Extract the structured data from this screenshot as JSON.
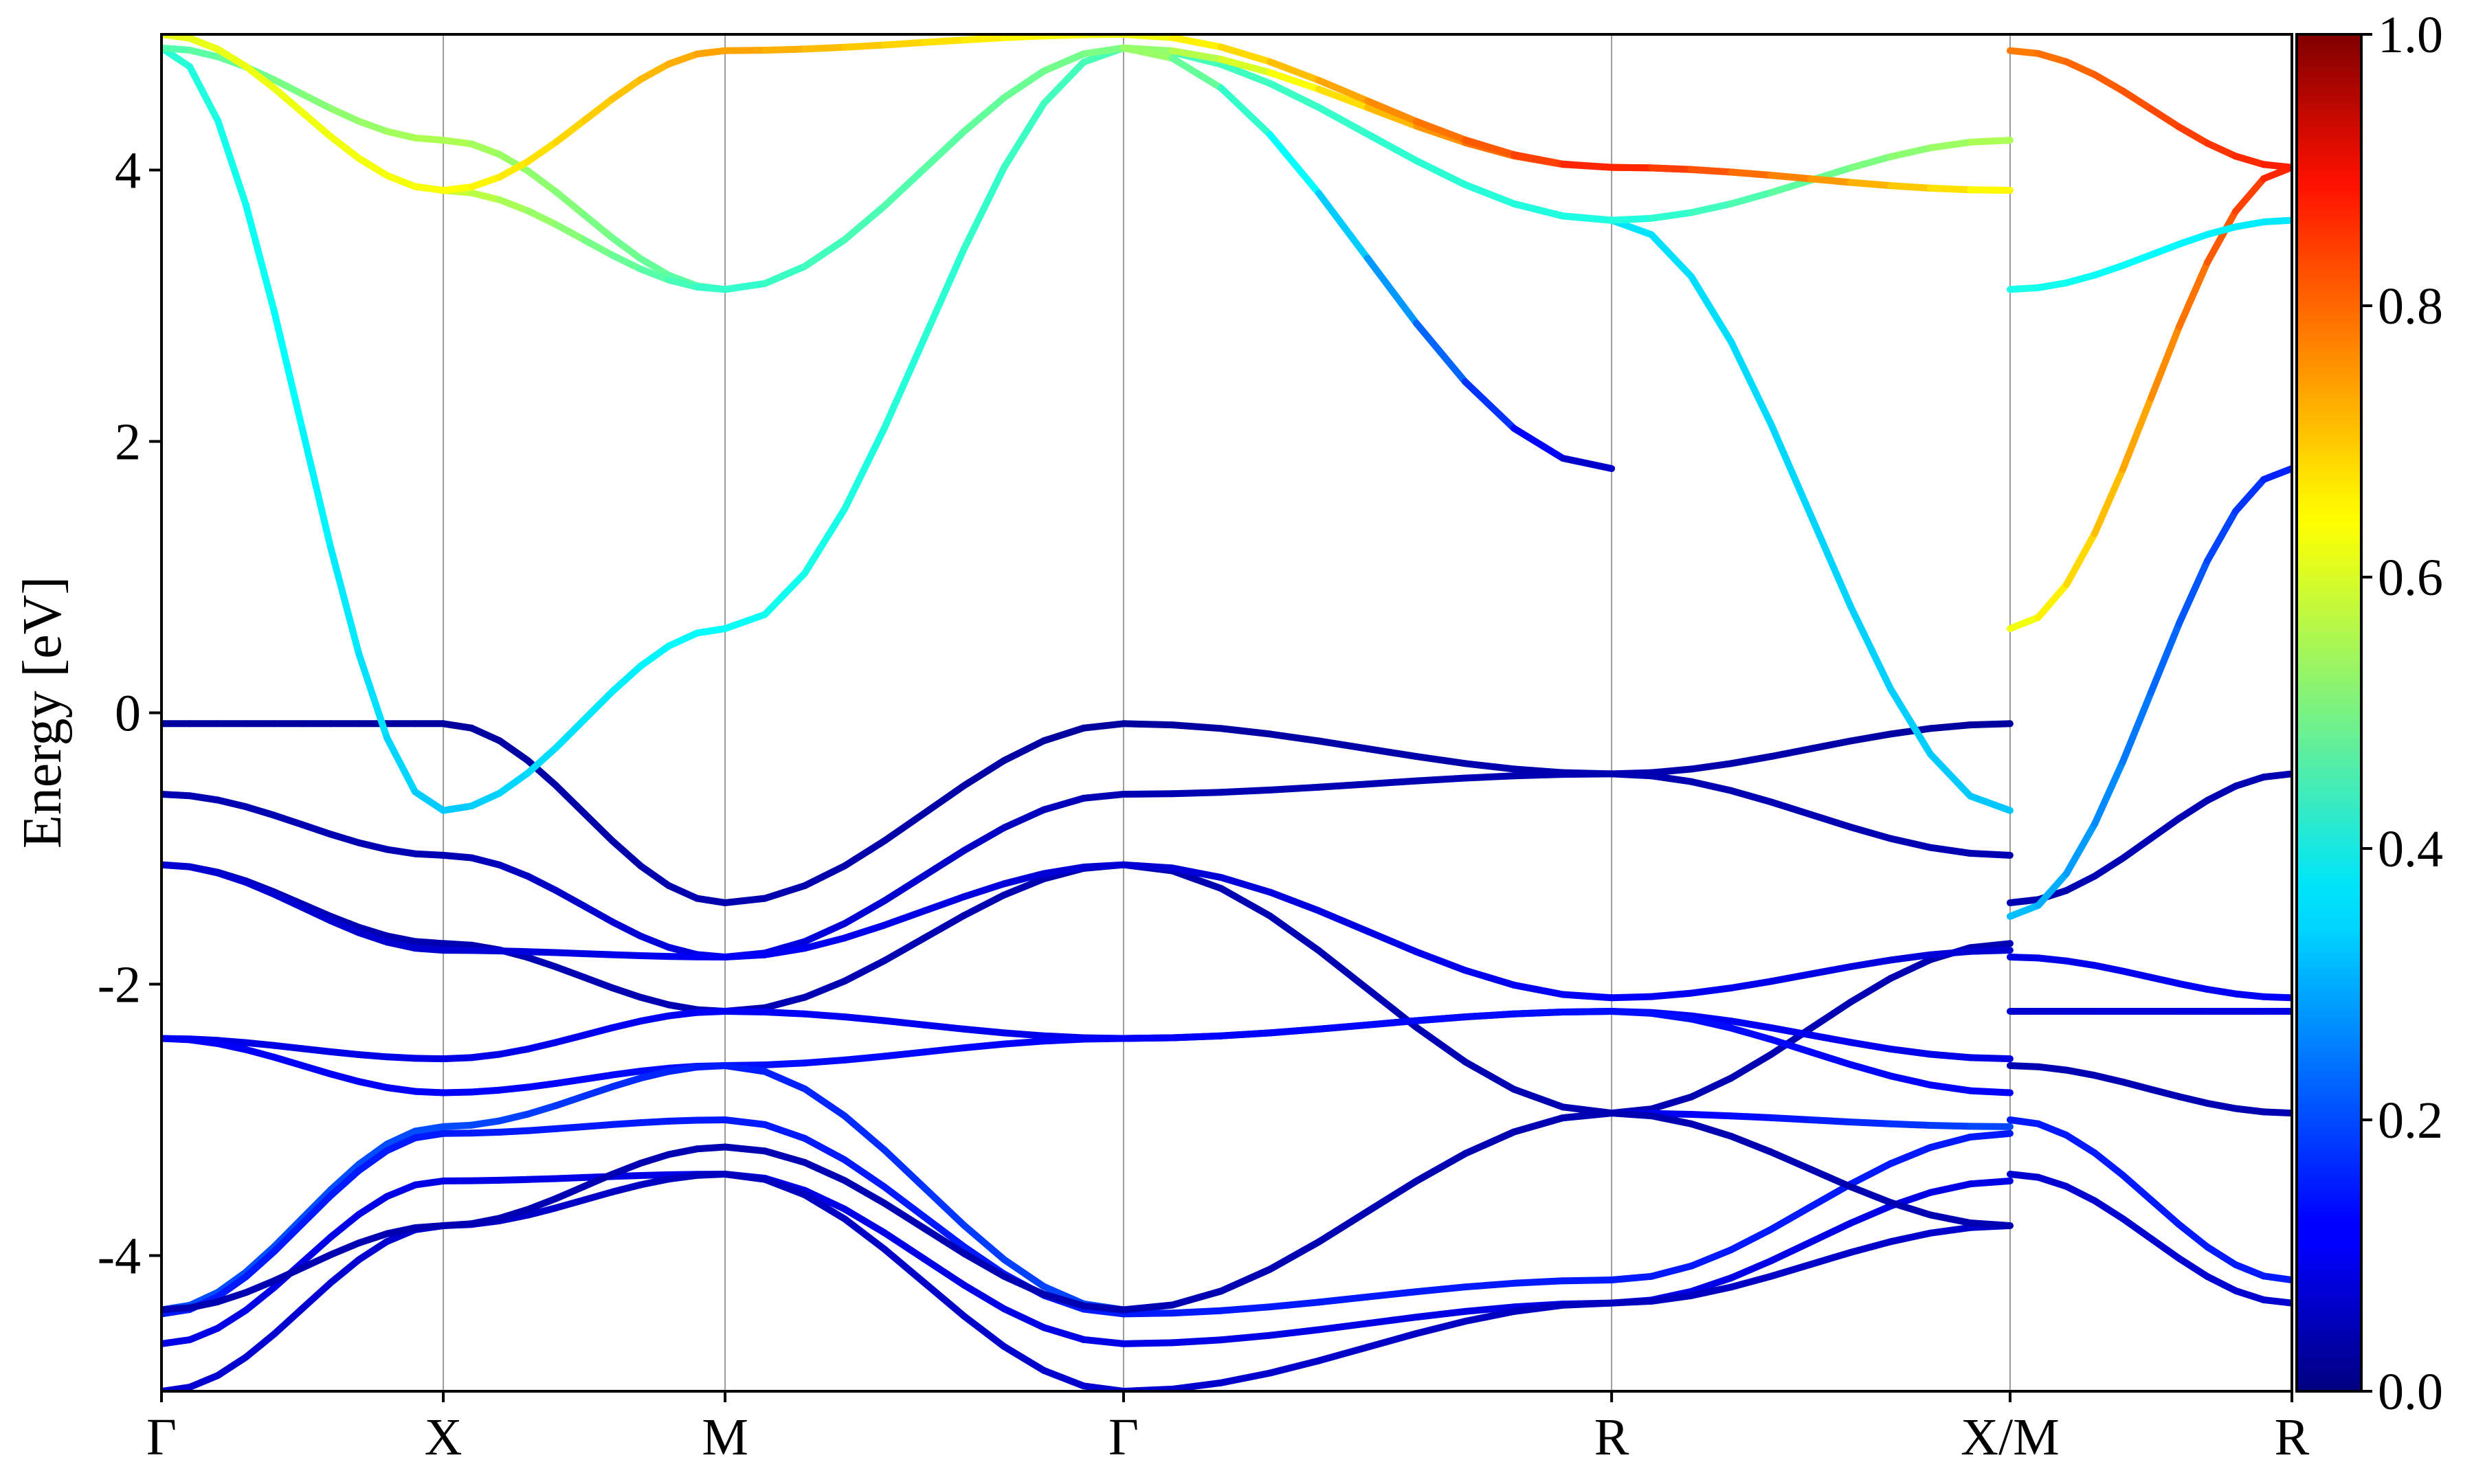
{
  "chart_data": {
    "type": "line",
    "title": "",
    "xlabel": "",
    "ylabel": "Energy [eV]",
    "ylim": [
      -5,
      5
    ],
    "y_ticks": [
      -4,
      -2,
      0,
      2,
      4
    ],
    "y_tick_labels": [
      "-4",
      "-2",
      "0",
      "2",
      "4"
    ],
    "x_high_symmetry": [
      {
        "label": "Γ",
        "x": 0.0
      },
      {
        "label": "X",
        "x": 0.5
      },
      {
        "label": "M",
        "x": 1.0
      },
      {
        "label": "Γ",
        "x": 1.707
      },
      {
        "label": "R",
        "x": 2.573
      },
      {
        "label": "X/M",
        "x": 3.28
      },
      {
        "label": "R",
        "x": 3.78
      }
    ],
    "xlim": [
      0,
      3.78
    ],
    "grid": "vertical lines at high-symmetry points",
    "colorbar": {
      "colormap": "jet",
      "range": [
        0.0,
        1.0
      ],
      "ticks": [
        0.0,
        0.2,
        0.4,
        0.6,
        0.8,
        1.0
      ],
      "tick_labels": [
        "0.0",
        "0.2",
        "0.4",
        "0.6",
        "0.8",
        "1.0"
      ],
      "placement": "right"
    },
    "series": [
      {
        "x": [
          0,
          0.5,
          1.0,
          1.707,
          2.573,
          3.28
        ],
        "y": [
          -0.08,
          -0.08,
          -1.4,
          -0.08,
          -0.45,
          -0.08
        ],
        "weight": [
          0.03,
          0.03,
          0.05,
          0.03,
          0.05,
          0.03
        ]
      },
      {
        "x": [
          0,
          0.5,
          1.0,
          1.707,
          2.573,
          3.28
        ],
        "y": [
          -0.6,
          -1.05,
          -1.8,
          -0.6,
          -0.45,
          -1.05
        ],
        "weight": [
          0.05,
          0.05,
          0.1,
          0.05,
          0.05,
          0.05
        ]
      },
      {
        "x": [
          0,
          0.5,
          1.0,
          1.707,
          2.573,
          3.28
        ],
        "y": [
          -1.12,
          -1.7,
          -2.2,
          -1.12,
          -2.95,
          -1.7
        ],
        "weight": [
          0.05,
          0.05,
          0.05,
          0.05,
          0.05,
          0.05
        ]
      },
      {
        "x": [
          0,
          0.5,
          1.0,
          1.707,
          2.573,
          3.28
        ],
        "y": [
          -1.12,
          -1.75,
          -1.8,
          -1.12,
          -2.1,
          -1.75
        ],
        "weight": [
          0.08,
          0.08,
          0.12,
          0.08,
          0.12,
          0.08
        ]
      },
      {
        "x": [
          0,
          0.5,
          1.0,
          1.707,
          2.573,
          3.28
        ],
        "y": [
          -2.4,
          -2.55,
          -2.2,
          -2.4,
          -2.2,
          -2.55
        ],
        "weight": [
          0.1,
          0.1,
          0.12,
          0.1,
          0.12,
          0.1
        ]
      },
      {
        "x": [
          0,
          0.5,
          1.0,
          1.707,
          2.573,
          3.28
        ],
        "y": [
          -2.4,
          -2.8,
          -2.6,
          -2.4,
          -2.2,
          -2.8
        ],
        "weight": [
          0.12,
          0.12,
          0.14,
          0.12,
          0.14,
          0.12
        ]
      },
      {
        "x": [
          0,
          0.5,
          1.0,
          1.707,
          2.573,
          3.28
        ],
        "y": [
          -4.4,
          -3.05,
          -2.6,
          -4.4,
          -2.95,
          -3.05
        ],
        "weight": [
          0.2,
          0.2,
          0.15,
          0.2,
          0.1,
          0.2
        ]
      },
      {
        "x": [
          0,
          0.5,
          1.0,
          1.707,
          2.573,
          3.28
        ],
        "y": [
          -4.43,
          -3.1,
          -3.0,
          -4.43,
          -4.18,
          -3.1
        ],
        "weight": [
          0.15,
          0.15,
          0.15,
          0.15,
          0.15,
          0.15
        ]
      },
      {
        "x": [
          0,
          0.5,
          1.0,
          1.707,
          2.573,
          3.28
        ],
        "y": [
          -4.65,
          -3.45,
          -3.4,
          -4.65,
          -4.35,
          -3.45
        ],
        "weight": [
          0.1,
          0.1,
          0.1,
          0.1,
          0.1,
          0.1
        ]
      },
      {
        "x": [
          0,
          0.5,
          1.0,
          1.707,
          2.573,
          3.28
        ],
        "y": [
          -5.0,
          -3.78,
          -3.4,
          -5.0,
          -4.35,
          -3.78
        ],
        "weight": [
          0.08,
          0.08,
          0.06,
          0.08,
          0.06,
          0.08
        ]
      },
      {
        "x": [
          0,
          0.5,
          1.0,
          1.707,
          2.573,
          3.28
        ],
        "y": [
          -4.4,
          -3.78,
          -3.2,
          -4.4,
          -2.95,
          -3.78
        ],
        "weight": [
          0.05,
          0.05,
          0.05,
          0.05,
          0.05,
          0.05
        ]
      },
      {
        "x": [
          0,
          0.5,
          1.0,
          1.707,
          2.573,
          3.28
        ],
        "y": [
          4.9,
          -0.72,
          0.62,
          4.9,
          3.63,
          -0.72
        ],
        "weight": [
          0.42,
          0.32,
          0.38,
          0.45,
          0.35,
          0.32
        ]
      },
      {
        "x": [
          0,
          0.5,
          1.0,
          1.707,
          2.573,
          3.28
        ],
        "y": [
          4.9,
          4.22,
          3.12,
          4.9,
          3.63,
          4.22
        ],
        "weight": [
          0.45,
          0.55,
          0.45,
          0.45,
          0.4,
          0.55
        ]
      },
      {
        "x": [
          0,
          0.5,
          1.0,
          1.707,
          2.573,
          3.28
        ],
        "y": [
          5.0,
          3.85,
          3.12,
          4.9,
          4.02,
          3.85
        ],
        "weight": [
          0.6,
          0.58,
          0.42,
          0.5,
          0.85,
          0.58
        ]
      },
      {
        "x": [
          0,
          0.5,
          1.0,
          1.707,
          2.573,
          3.28
        ],
        "y": [
          5.0,
          3.85,
          4.88,
          5.0,
          4.02,
          3.85
        ],
        "weight": [
          0.6,
          0.62,
          0.72,
          0.6,
          0.85,
          0.62
        ]
      },
      {
        "x": [
          1.707,
          2.573
        ],
        "y": [
          4.9,
          1.8
        ],
        "weight": [
          0.55,
          0.05
        ]
      },
      {
        "x": [
          3.28,
          3.78
        ],
        "y": [
          -1.4,
          -0.45
        ],
        "weight": [
          0.05,
          0.05
        ]
      },
      {
        "x": [
          3.28,
          3.78
        ],
        "y": [
          -1.8,
          -2.1
        ],
        "weight": [
          0.1,
          0.12
        ]
      },
      {
        "x": [
          3.28,
          3.78
        ],
        "y": [
          -2.2,
          -2.2
        ],
        "weight": [
          0.08,
          0.1
        ]
      },
      {
        "x": [
          3.28,
          3.78
        ],
        "y": [
          -2.6,
          -2.95
        ],
        "weight": [
          0.05,
          0.05
        ]
      },
      {
        "x": [
          3.28,
          3.78
        ],
        "y": [
          -3.0,
          -4.18
        ],
        "weight": [
          0.15,
          0.15
        ]
      },
      {
        "x": [
          3.28,
          3.78
        ],
        "y": [
          -3.4,
          -4.35
        ],
        "weight": [
          0.08,
          0.08
        ]
      },
      {
        "x": [
          3.28,
          3.78
        ],
        "y": [
          -1.5,
          1.8
        ],
        "weight": [
          0.32,
          0.15
        ]
      },
      {
        "x": [
          3.28,
          3.78
        ],
        "y": [
          0.62,
          4.02
        ],
        "weight": [
          0.6,
          0.85
        ]
      },
      {
        "x": [
          3.28,
          3.78
        ],
        "y": [
          3.12,
          3.63
        ],
        "weight": [
          0.4,
          0.35
        ]
      },
      {
        "x": [
          3.28,
          3.78
        ],
        "y": [
          4.88,
          4.02
        ],
        "weight": [
          0.75,
          0.85
        ]
      }
    ]
  }
}
